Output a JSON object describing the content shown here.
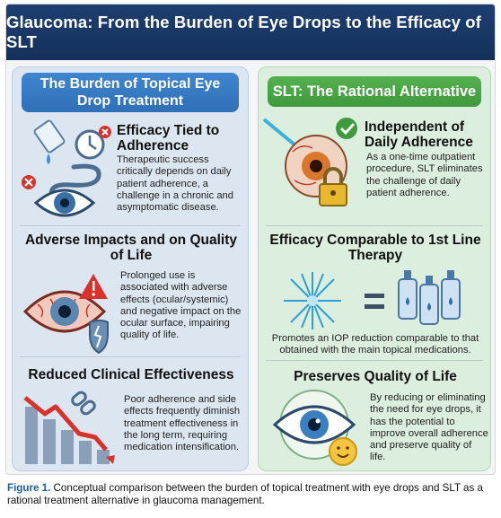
{
  "banner": {
    "title": "Glaucoma: From the Burden of Eye Drops to the Efficacy of SLT"
  },
  "left": {
    "header": "The Burden of Topical Eye Drop Treatment",
    "sections": [
      {
        "title": "Efficacy Tied to Adherence",
        "text": "Therapeutic success critically depends on daily patient adherence, a challenge in a chronic and asymptomatic disease."
      },
      {
        "title": "Adverse Impacts and on Quality of Life",
        "text": "Prolonged use is associated with adverse effects (ocular/systemic) and negative impact on the ocular surface, impairing quality of life."
      },
      {
        "title": "Reduced Clinical Effectiveness",
        "text": "Poor adherence and side effects frequently diminish treatment effectiveness in the long term, requiring medication intensification."
      }
    ]
  },
  "right": {
    "header": "SLT: The Rational Alternative",
    "sections": [
      {
        "title": "Independent of Daily Adherence",
        "text": "As a one-time outpatient procedure, SLT eliminates the challenge of daily patient adherence."
      },
      {
        "title": "Efficacy Comparable to 1st Line Therapy",
        "text": "Promotes an IOP reduction comparable to that obtained with the main topical medications."
      },
      {
        "title": "Preserves Quality of Life",
        "text": "By reducing or eliminating the need for eye drops, it has the potential to improve overall adherence and preserve quality of life."
      }
    ]
  },
  "caption": {
    "label": "Figure 1.",
    "text": " Conceptual comparison between the burden of topical treatment with eye drops and SLT as a rational treatment alternative in glaucoma management."
  },
  "colors": {
    "banner": "#1d3f70",
    "left_header": "#3f86cf",
    "right_header": "#55b04f"
  }
}
